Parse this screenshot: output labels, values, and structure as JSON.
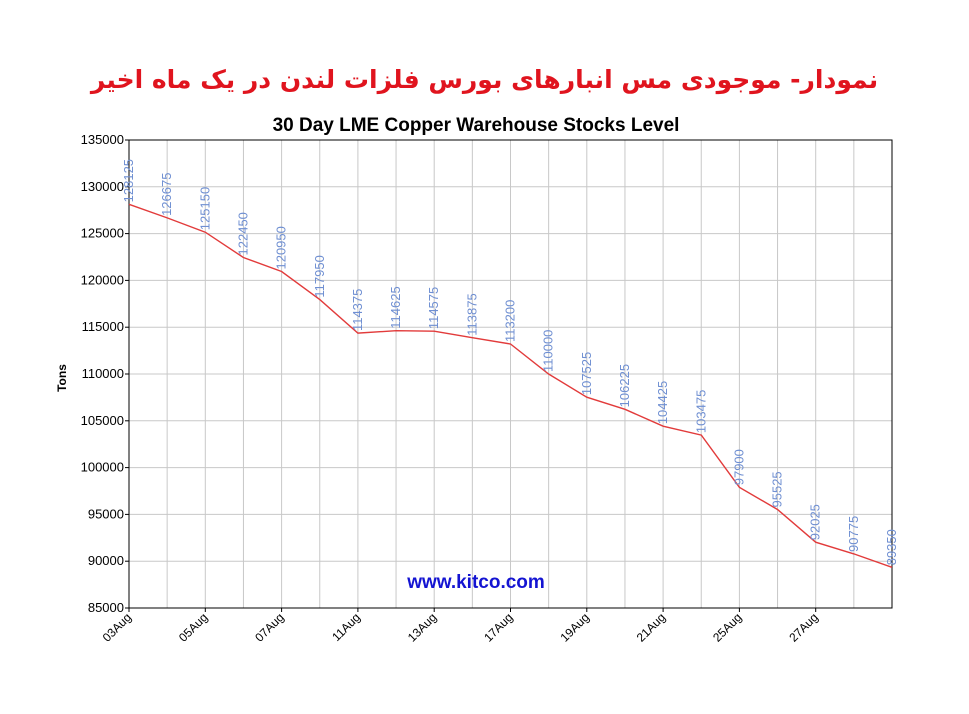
{
  "header": {
    "title": "نمودار- موجودی مس انبارهای بورس فلزات لندن در یک ماه اخیر"
  },
  "watermark": "www.kitco.com",
  "colors": {
    "line": "#e23b3b",
    "data_label": "#6f8fd2",
    "grid": "#c8c8c8",
    "header": "#e0141e",
    "watermark": "#1414d2"
  },
  "chart_data": {
    "type": "line",
    "title": "30 Day LME Copper Warehouse Stocks Level",
    "xlabel": "",
    "ylabel": "Tons",
    "ylim": [
      85000,
      135000
    ],
    "yticks": [
      "135000",
      "130000",
      "125000",
      "120000",
      "115000",
      "110000",
      "105000",
      "100000",
      "95000",
      "90000",
      "85000"
    ],
    "xticks": [
      "03Aug",
      "05Aug",
      "07Aug",
      "11Aug",
      "13Aug",
      "17Aug",
      "19Aug",
      "21Aug",
      "25Aug",
      "27Aug"
    ],
    "grid": true,
    "legend": "none",
    "series": [
      {
        "values": [
          128125,
          126675,
          125150,
          122450,
          120950,
          117950,
          114375,
          114625,
          114575,
          113875,
          113200,
          110000,
          107525,
          106225,
          104425,
          103475,
          97900,
          95525,
          92025,
          90775,
          89350
        ],
        "labels": [
          "128125",
          "126675",
          "125150",
          "122450",
          "120950",
          "117950",
          "114375",
          "114625",
          "114575",
          "113875",
          "113200",
          "110000",
          "107525",
          "106225",
          "104425",
          "103475",
          "97900",
          "95525",
          "92025",
          "90775",
          "89350"
        ]
      }
    ]
  }
}
